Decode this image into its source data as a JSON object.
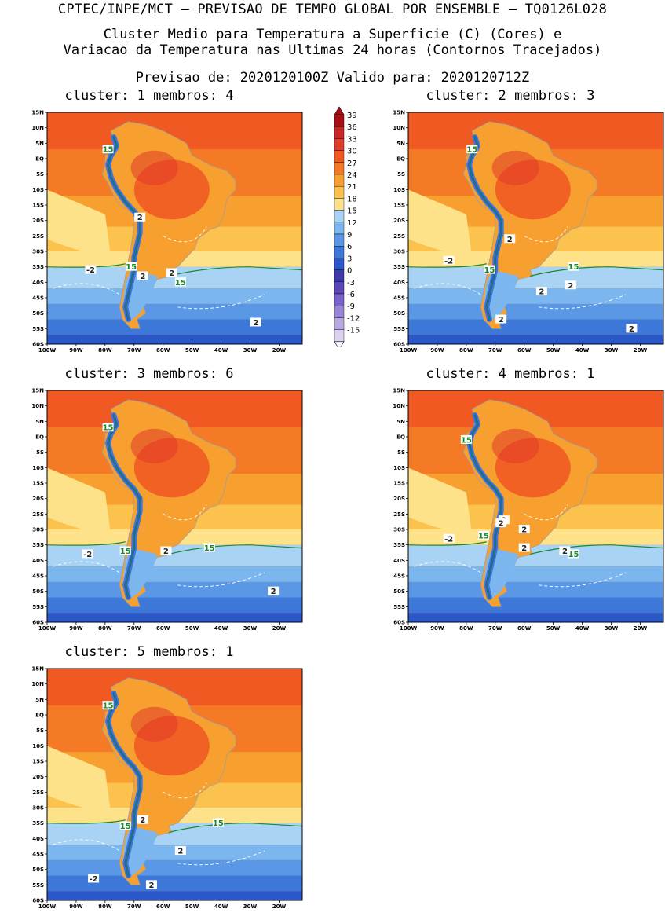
{
  "header": {
    "line1": "CPTEC/INPE/MCT – PREVISAO DE TEMPO GLOBAL POR ENSEMBLE – TQ0126L028",
    "line2": "Cluster Medio para Temperatura a Superficie (C) (Cores) e",
    "line3": "Variacao da Temperatura nas Ultimas 24 horas (Contornos Tracejados)",
    "line4": "Previsao de: 2020120100Z    Valido para: 2020120712Z"
  },
  "panels": [
    {
      "title": "cluster: 1   membros: 4"
    },
    {
      "title": "cluster: 2   membros: 3"
    },
    {
      "title": "cluster: 3   membros: 6"
    },
    {
      "title": "cluster: 4   membros: 1"
    },
    {
      "title": "cluster: 5   membros: 1"
    }
  ],
  "axes": {
    "lat_labels": [
      "15N",
      "10N",
      "5N",
      "EQ",
      "5S",
      "10S",
      "15S",
      "20S",
      "25S",
      "30S",
      "35S",
      "40S",
      "45S",
      "50S",
      "55S",
      "60S"
    ],
    "lon_labels": [
      "100W",
      "90W",
      "80W",
      "70W",
      "60W",
      "50W",
      "40W",
      "30W",
      "20W"
    ]
  },
  "colorbar": {
    "levels": [
      "39",
      "36",
      "33",
      "30",
      "27",
      "24",
      "21",
      "18",
      "15",
      "12",
      "9",
      "6",
      "3",
      "0",
      "-3",
      "-6",
      "-9",
      "-12",
      "-15"
    ],
    "colors": [
      "#a50f15",
      "#c62828",
      "#e03a2a",
      "#f05a22",
      "#f47a25",
      "#f7a02f",
      "#fbc24e",
      "#fde28a",
      "#a8d3f5",
      "#7bb6ee",
      "#5a98e6",
      "#3d78d8",
      "#2a58c8",
      "#3e3aa8",
      "#5a46b8",
      "#7a62c8",
      "#9a86d6",
      "#b9a9e2",
      "#dcd2f0"
    ]
  },
  "contour_labels": {
    "p1": [
      "15",
      "15",
      "15",
      "2",
      "2",
      "2",
      "-2",
      "2"
    ],
    "p2": [
      "15",
      "15",
      "15",
      "2",
      "2",
      "2",
      "-2",
      "2",
      "2"
    ],
    "p3": [
      "15",
      "15",
      "15",
      "2",
      "-2",
      "2"
    ],
    "p4": [
      "15",
      "15",
      "15",
      "2",
      "2",
      "2",
      "-2",
      "2",
      "2"
    ],
    "p5": [
      "15",
      "15",
      "15",
      "2",
      "2",
      "-2",
      "2"
    ]
  }
}
